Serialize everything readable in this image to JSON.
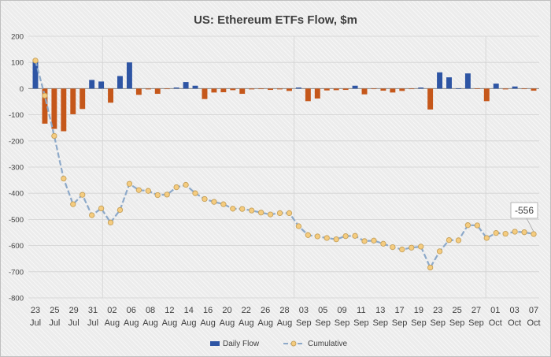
{
  "chart_data": {
    "type": "bar+line",
    "title": "US: Ethereum ETFs Flow, $m",
    "ylim": [
      -800,
      200
    ],
    "yticks": [
      -800,
      -700,
      -600,
      -500,
      -400,
      -300,
      -200,
      -100,
      0,
      100,
      200
    ],
    "grid": true,
    "legend_position": "bottom",
    "colors": {
      "bar_pos": "#2e55a4",
      "bar_neg": "#c5571a",
      "line": "#8da9c9",
      "marker_fill": "#f5cc7f",
      "marker_stroke": "#c5a05a"
    },
    "x_labels": [
      {
        "day": "23",
        "month": "Jul"
      },
      {
        "day": "25",
        "month": "Jul"
      },
      {
        "day": "29",
        "month": "Jul"
      },
      {
        "day": "31",
        "month": "Jul"
      },
      {
        "day": "02",
        "month": "Aug"
      },
      {
        "day": "06",
        "month": "Aug"
      },
      {
        "day": "08",
        "month": "Aug"
      },
      {
        "day": "12",
        "month": "Aug"
      },
      {
        "day": "14",
        "month": "Aug"
      },
      {
        "day": "16",
        "month": "Aug"
      },
      {
        "day": "20",
        "month": "Aug"
      },
      {
        "day": "22",
        "month": "Aug"
      },
      {
        "day": "26",
        "month": "Aug"
      },
      {
        "day": "28",
        "month": "Aug"
      },
      {
        "day": "03",
        "month": "Sep"
      },
      {
        "day": "05",
        "month": "Sep"
      },
      {
        "day": "09",
        "month": "Sep"
      },
      {
        "day": "11",
        "month": "Sep"
      },
      {
        "day": "13",
        "month": "Sep"
      },
      {
        "day": "17",
        "month": "Sep"
      },
      {
        "day": "19",
        "month": "Sep"
      },
      {
        "day": "23",
        "month": "Sep"
      },
      {
        "day": "25",
        "month": "Sep"
      },
      {
        "day": "27",
        "month": "Sep"
      },
      {
        "day": "01",
        "month": "Oct"
      },
      {
        "day": "03",
        "month": "Oct"
      },
      {
        "day": "07",
        "month": "Oct"
      }
    ],
    "series": [
      {
        "name": "Daily Flow",
        "values": [
          107,
          -134,
          -154,
          -163,
          -98,
          -78,
          33,
          27,
          -54,
          48,
          100,
          -24,
          -3,
          -20,
          -2,
          4,
          25,
          11,
          -40,
          -15,
          -14,
          -6,
          -20,
          -3,
          -2,
          -5,
          -3,
          -9,
          4,
          -48,
          -38,
          -7,
          -6,
          -5,
          11,
          -22,
          -2,
          -8,
          -15,
          -9,
          -2,
          4,
          -80,
          62,
          43,
          0,
          58,
          -1,
          -48,
          19,
          -3,
          8,
          -2,
          -8
        ]
      },
      {
        "name": "Cumulative",
        "values": [
          107,
          -27,
          -181,
          -344,
          -442,
          -406,
          -484,
          -458,
          -512,
          -464,
          -364,
          -388,
          -391,
          -407,
          -405,
          -377,
          -368,
          -400,
          -422,
          -433,
          -442,
          -459,
          -460,
          -466,
          -474,
          -481,
          -476,
          -476,
          -526,
          -560,
          -565,
          -571,
          -576,
          -564,
          -563,
          -583,
          -581,
          -593,
          -606,
          -615,
          -608,
          -604,
          -684,
          -622,
          -579,
          -580,
          -522,
          -523,
          -571,
          -552,
          -555,
          -547,
          -549,
          -556
        ]
      }
    ],
    "annotation": {
      "label": "-556"
    }
  }
}
